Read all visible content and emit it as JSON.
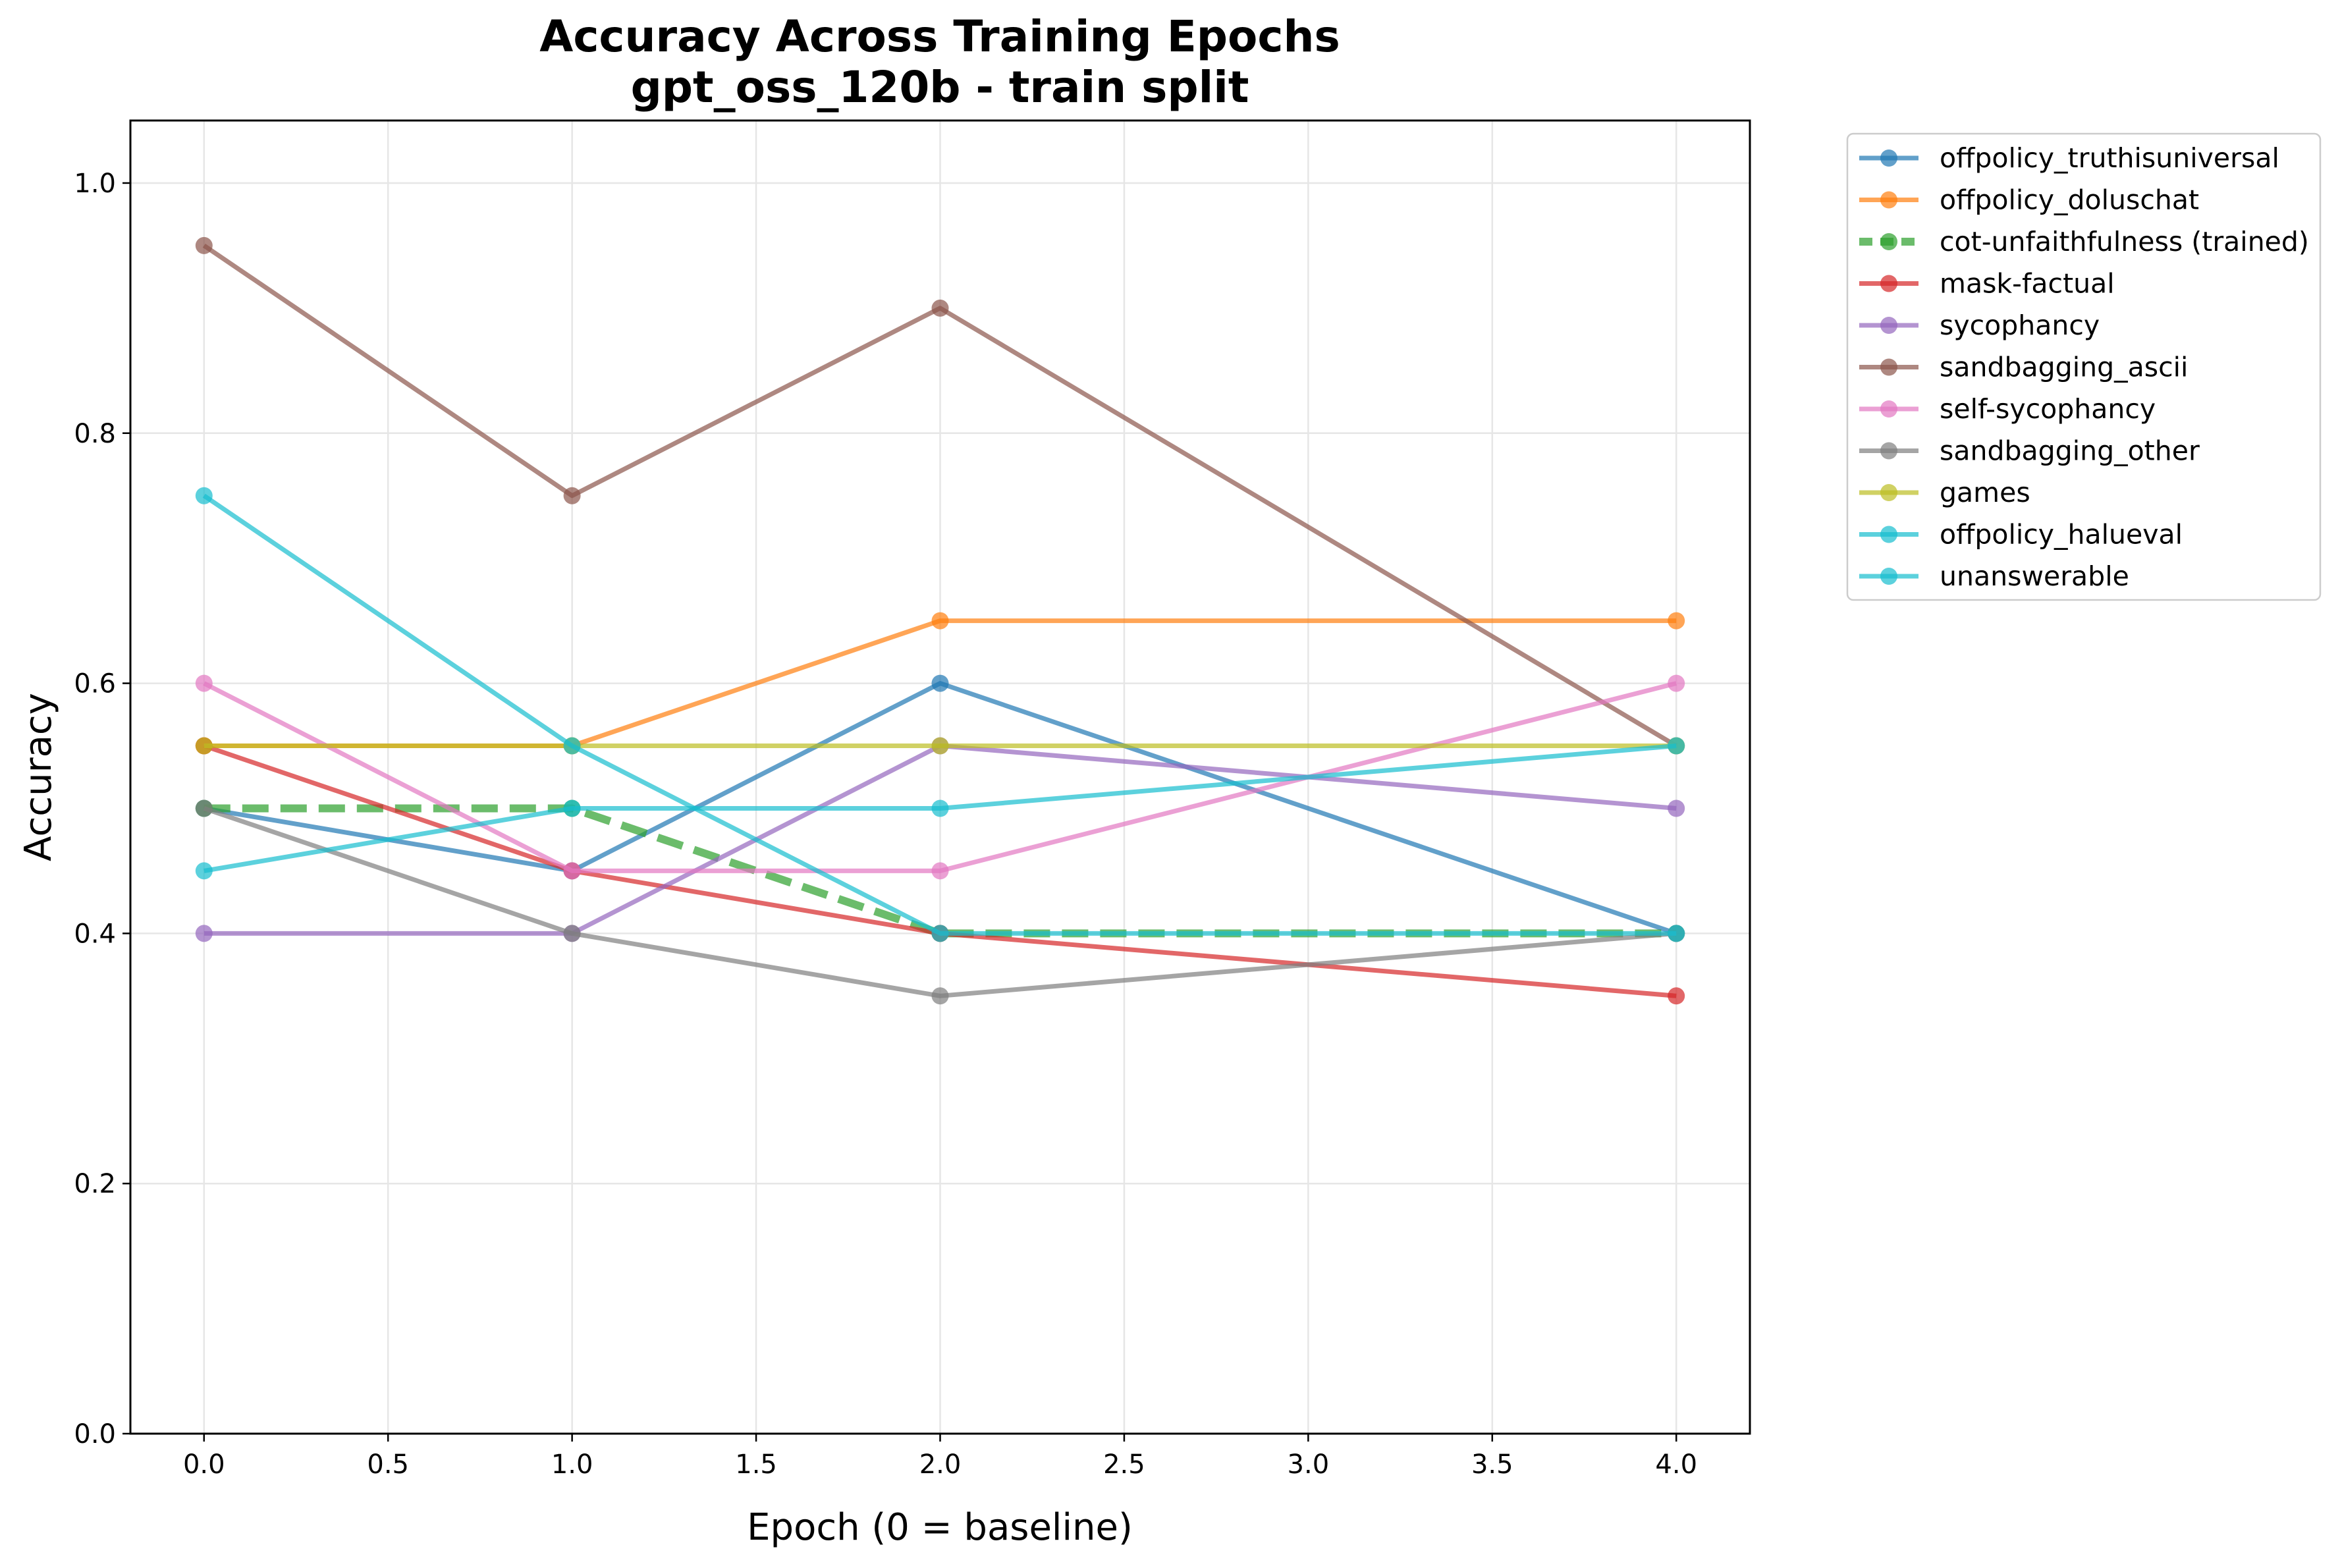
{
  "chart_data": {
    "type": "line",
    "title": "Accuracy Across Training Epochs",
    "subtitle": "gpt_oss_120b - train split",
    "xlabel": "Epoch (0 = baseline)",
    "ylabel": "Accuracy",
    "xlim": [
      -0.2,
      4.2
    ],
    "ylim": [
      0.0,
      1.05
    ],
    "x_ticks": [
      0.0,
      0.5,
      1.0,
      1.5,
      2.0,
      2.5,
      3.0,
      3.5,
      4.0
    ],
    "x_tick_labels": [
      "0.0",
      "0.5",
      "1.0",
      "1.5",
      "2.0",
      "2.5",
      "3.0",
      "3.5",
      "4.0"
    ],
    "y_ticks": [
      0.0,
      0.2,
      0.4,
      0.6,
      0.8,
      1.0
    ],
    "y_tick_labels": [
      "0.0",
      "0.2",
      "0.4",
      "0.6",
      "0.8",
      "1.0"
    ],
    "grid": true,
    "legend_position": "outside right, top",
    "x": [
      0,
      1,
      2,
      4
    ],
    "series": [
      {
        "name": "offpolicy_truthisuniversal",
        "color": "#1f77b4",
        "dashed": false,
        "values": [
          0.5,
          0.45,
          0.6,
          0.4
        ]
      },
      {
        "name": "offpolicy_doluschat",
        "color": "#ff7f0e",
        "dashed": false,
        "values": [
          0.55,
          0.55,
          0.65,
          0.65
        ]
      },
      {
        "name": "cot-unfaithfulness (trained)",
        "color": "#2ca02c",
        "dashed": true,
        "values": [
          0.5,
          0.5,
          0.4,
          0.4
        ]
      },
      {
        "name": "mask-factual",
        "color": "#d62728",
        "dashed": false,
        "values": [
          0.55,
          0.45,
          0.4,
          0.35
        ]
      },
      {
        "name": "sycophancy",
        "color": "#9467bd",
        "dashed": false,
        "values": [
          0.4,
          0.4,
          0.55,
          0.5
        ]
      },
      {
        "name": "sandbagging_ascii",
        "color": "#8c564b",
        "dashed": false,
        "values": [
          0.95,
          0.75,
          0.9,
          0.55
        ]
      },
      {
        "name": "self-sycophancy",
        "color": "#e377c2",
        "dashed": false,
        "values": [
          0.6,
          0.45,
          0.45,
          0.6
        ]
      },
      {
        "name": "sandbagging_other",
        "color": "#7f7f7f",
        "dashed": false,
        "values": [
          0.5,
          0.4,
          0.35,
          0.4
        ]
      },
      {
        "name": "games",
        "color": "#bcbd22",
        "dashed": false,
        "values": [
          0.55,
          0.55,
          0.55,
          0.55
        ]
      },
      {
        "name": "offpolicy_halueval",
        "color": "#17becf",
        "dashed": false,
        "values": [
          0.45,
          0.5,
          0.5,
          0.55
        ]
      },
      {
        "name": "unanswerable",
        "color": "#17becf",
        "dashed": false,
        "values": [
          0.75,
          0.55,
          0.4,
          0.4
        ]
      }
    ]
  }
}
